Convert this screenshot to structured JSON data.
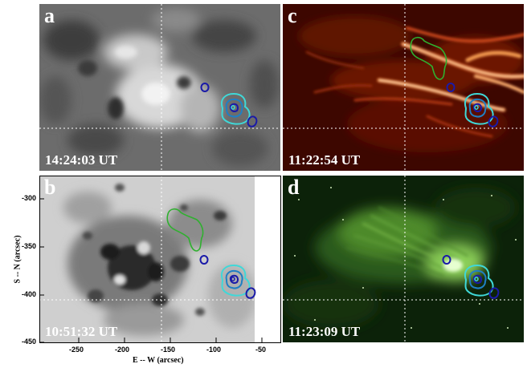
{
  "panels": [
    {
      "letter": "a",
      "timestamp": "14:24:03 UT"
    },
    {
      "letter": "c",
      "timestamp": "11:22:54 UT"
    },
    {
      "letter": "b",
      "timestamp": "10:51:32 UT"
    },
    {
      "letter": "d",
      "timestamp": "11:23:09 UT"
    }
  ],
  "axes": {
    "xlabel": "E -- W (arcsec)",
    "ylabel": "S -- N (arcsec)",
    "xticks": [
      "-250",
      "-200",
      "-150",
      "-100",
      "-50"
    ],
    "yticks": [
      "-300",
      "-350",
      "-400",
      "-450"
    ]
  },
  "colors": {
    "contour_dark": "#1a1aa8",
    "contour_mid": "#1f7fc4",
    "contour_light": "#3fd8d8",
    "contour_green": "#2fb02f"
  }
}
